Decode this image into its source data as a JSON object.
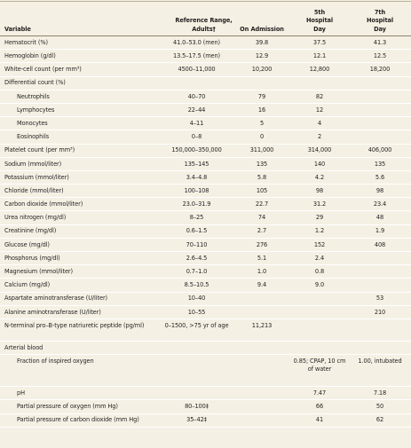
{
  "headers": {
    "variable": "Variable",
    "reference": "Reference Range, Adults†",
    "admission": "On Admission",
    "day5": "5th Hospital Day",
    "day7": "7th Hospital Day"
  },
  "rows": [
    {
      "name": "Hematocrit (%)",
      "ref": "41.0–53.0 (men)",
      "adm": "39.8",
      "d5": "37.5",
      "d7": "41.3"
    },
    {
      "name": "Hemoglobin (g/dl)",
      "ref": "13.5–17.5 (men)",
      "adm": "12.9",
      "d5": "12.1",
      "d7": "12.5"
    },
    {
      "name": "White-cell count (per mm³)",
      "ref": "4500–11,000",
      "adm": "10,200",
      "d5": "12,800",
      "d7": "18,200"
    },
    {
      "name": "Differential count (%)",
      "ref": "",
      "adm": "",
      "d5": "",
      "d7": ""
    },
    {
      "name": "Neutrophils",
      "ref": "40–70",
      "adm": "79",
      "d5": "82",
      "d7": ""
    },
    {
      "name": "Lymphocytes",
      "ref": "22–44",
      "adm": "16",
      "d5": "12",
      "d7": ""
    },
    {
      "name": "Monocytes",
      "ref": "4–11",
      "adm": "5",
      "d5": "4",
      "d7": ""
    },
    {
      "name": "Eosinophils",
      "ref": "0–8",
      "adm": "0",
      "d5": "2",
      "d7": ""
    },
    {
      "name": "Platelet count (per mm³)",
      "ref": "150,000–350,000",
      "adm": "311,000",
      "d5": "314,000",
      "d7": "406,000"
    },
    {
      "name": "Sodium (mmol/liter)",
      "ref": "135–145",
      "adm": "135",
      "d5": "140",
      "d7": "135"
    },
    {
      "name": "Potassium (mmol/liter)",
      "ref": "3.4–4.8",
      "adm": "5.8",
      "d5": "4.2",
      "d7": "5.6"
    },
    {
      "name": "Chloride (mmol/liter)",
      "ref": "100–108",
      "adm": "105",
      "d5": "98",
      "d7": "98"
    },
    {
      "name": "Carbon dioxide (mmol/liter)",
      "ref": "23.0–31.9",
      "adm": "22.7",
      "d5": "31.2",
      "d7": "23.4"
    },
    {
      "name": "Urea nitrogen (mg/dl)",
      "ref": "8–25",
      "adm": "74",
      "d5": "29",
      "d7": "48"
    },
    {
      "name": "Creatinine (mg/dl)",
      "ref": "0.6–1.5",
      "adm": "2.7",
      "d5": "1.2",
      "d7": "1.9"
    },
    {
      "name": "Glucose (mg/dl)",
      "ref": "70–110",
      "adm": "276",
      "d5": "152",
      "d7": "408"
    },
    {
      "name": "Phosphorus (mg/dl)",
      "ref": "2.6–4.5",
      "adm": "5.1",
      "d5": "2.4",
      "d7": ""
    },
    {
      "name": "Magnesium (mmol/liter)",
      "ref": "0.7–1.0",
      "adm": "1.0",
      "d5": "0.8",
      "d7": ""
    },
    {
      "name": "Calcium (mg/dl)",
      "ref": "8.5–10.5",
      "adm": "9.4",
      "d5": "9.0",
      "d7": ""
    },
    {
      "name": "Aspartate aminotransferase (U/liter)",
      "ref": "10–40",
      "adm": "",
      "d5": "",
      "d7": "53"
    },
    {
      "name": "Alanine aminotransferase (U/liter)",
      "ref": "10–55",
      "adm": "",
      "d5": "",
      "d7": "210"
    },
    {
      "name": "N-terminal pro–B-type natriuretic peptide (pg/ml)",
      "ref": "0–1500, >75 yr of age",
      "adm": "11,213",
      "d5": "",
      "d7": ""
    },
    {
      "name": "Arterial blood",
      "ref": "",
      "adm": "",
      "d5": "",
      "d7": ""
    },
    {
      "name": "Fraction of inspired oxygen",
      "ref": "",
      "adm": "",
      "d5": "0.85; CPAP, 10 cm of water",
      "d7": "1.00, intubated"
    },
    {
      "name": "pH",
      "ref": "",
      "adm": "",
      "d5": "7.47",
      "d7": "7.18"
    },
    {
      "name": "Partial pressure of oxygen (mm Hg)",
      "ref": "80–100‡",
      "adm": "",
      "d5": "66",
      "d7": "50"
    },
    {
      "name": "Partial pressure of carbon dioxide (mm Hg)",
      "ref": "35–42‡",
      "adm": "",
      "d5": "41",
      "d7": "62"
    }
  ],
  "colors": {
    "background": "#f4f1e4",
    "row_divider": "#ffffff",
    "text": "#231f20"
  }
}
